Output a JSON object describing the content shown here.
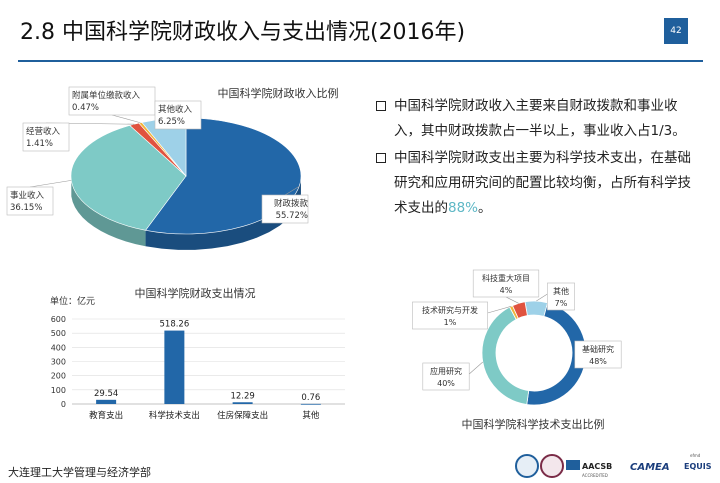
{
  "slide": {
    "title": "2.8  中国科学院财政收入与支出情况(2016年)",
    "page_number": "42",
    "bullets": [
      {
        "pre": "中国科学院财政收入主要来自财政拨款和事业收入，其中财政拨款占一半以上，事业收入占1/3。",
        "highlight": "",
        "post": ""
      },
      {
        "pre": "中国科学院财政支出主要为科学技术支出，在基础研究和应用研究间的配置比较均衡，占所有科学技术支出的",
        "highlight": "88%",
        "post": "。"
      }
    ],
    "footer": "大连理工大学管理与经济学部",
    "logo_texts": {
      "aacsb": "AACSB",
      "accredited": "ACCREDITED",
      "camea": "CAMEA",
      "equis": "EQUIS",
      "efmd": "efmd"
    }
  },
  "chart_data": [
    {
      "type": "pie",
      "title": "中国科学院财政收入比例",
      "slices": [
        {
          "label": "财政拨款",
          "value": 55.72,
          "display": "55.72%",
          "color": "#2267a8"
        },
        {
          "label": "事业收入",
          "value": 36.15,
          "display": "36.15%",
          "color": "#7ecac6"
        },
        {
          "label": "经营收入",
          "value": 1.41,
          "display": "1.41%",
          "color": "#e0533f"
        },
        {
          "label": "附属单位缴款收入",
          "value": 0.47,
          "display": "0.47%",
          "color": "#f0b43c"
        },
        {
          "label": "其他收入",
          "value": 6.25,
          "display": "6.25%",
          "color": "#9ed1e8"
        }
      ]
    },
    {
      "type": "bar",
      "title": "中国科学院财政支出情况",
      "unit_label": "单位：亿元",
      "categories": [
        "教育支出",
        "科学技术支出",
        "住房保障支出",
        "其他"
      ],
      "values": [
        29.54,
        518.26,
        12.29,
        0.76
      ],
      "value_labels": [
        "29.54",
        "518.26",
        "12.29",
        "0.76"
      ],
      "ylim": [
        0,
        600
      ],
      "yticks": [
        "0",
        "100",
        "200",
        "300",
        "400",
        "500",
        "600"
      ],
      "grid": true,
      "color": "#2267a8"
    },
    {
      "type": "pie",
      "style": "donut",
      "title": "中国科学院科学技术支出比例",
      "slices": [
        {
          "label": "基础研究",
          "value": 48,
          "display": "48%",
          "color": "#2267a8"
        },
        {
          "label": "应用研究",
          "value": 40,
          "display": "40%",
          "color": "#7ecac6"
        },
        {
          "label": "技术研究与开发",
          "value": 1,
          "display": "1%",
          "color": "#f0b43c"
        },
        {
          "label": "科技重大项目",
          "value": 4,
          "display": "4%",
          "color": "#e0533f"
        },
        {
          "label": "其他",
          "value": 7,
          "display": "7%",
          "color": "#9ed1e8"
        }
      ]
    }
  ]
}
